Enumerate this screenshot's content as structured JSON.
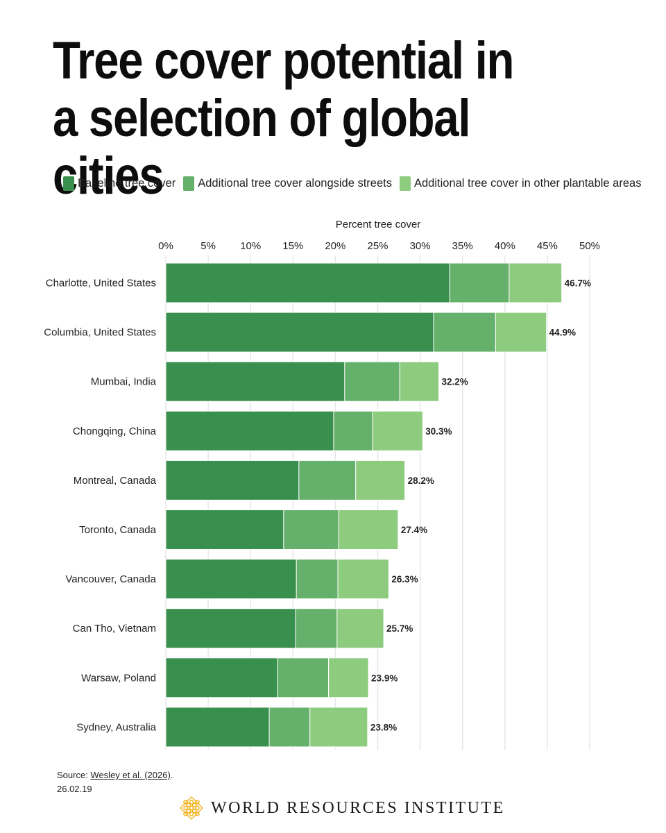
{
  "title": "Tree cover potential in a selection of global cities",
  "legend": [
    {
      "label": "Baseline tree cover",
      "color": "#398f4e"
    },
    {
      "label": "Additional tree cover alongside streets",
      "color": "#65b06b"
    },
    {
      "label": "Additional tree cover in other plantable areas",
      "color": "#8dcb7f"
    }
  ],
  "source": {
    "prefix": "Source: ",
    "link_text": "Wesley et al. (2026)",
    "suffix": ".",
    "date": "26.02.19"
  },
  "footer": {
    "org_name": "WORLD RESOURCES INSTITUTE",
    "logo_icon": "wri-logo-icon",
    "logo_color": "#f2b422"
  },
  "chart_data": {
    "type": "bar",
    "orientation": "horizontal",
    "stacked": true,
    "xlabel": "Percent tree cover",
    "xlim": [
      0,
      50
    ],
    "xticks": [
      "0%",
      "5%",
      "10%",
      "15%",
      "20%",
      "25%",
      "30%",
      "35%",
      "40%",
      "45%",
      "50%"
    ],
    "xtick_values": [
      0,
      5,
      10,
      15,
      20,
      25,
      30,
      35,
      40,
      45,
      50
    ],
    "grid": true,
    "legend_position": "top",
    "categories": [
      "Charlotte, United States",
      "Columbia, United States",
      "Mumbai, India",
      "Chongqing, China",
      "Montreal, Canada",
      "Toronto, Canada",
      "Vancouver, Canada",
      "Can Tho, Vietnam",
      "Warsaw, Poland",
      "Sydney, Australia"
    ],
    "series": [
      {
        "name": "Baseline tree cover",
        "values": [
          33.5,
          31.6,
          21.1,
          19.8,
          15.7,
          13.9,
          15.4,
          15.3,
          13.2,
          12.2
        ]
      },
      {
        "name": "Additional tree cover alongside streets",
        "values": [
          7.0,
          7.3,
          6.5,
          4.6,
          6.7,
          6.5,
          4.9,
          4.9,
          6.0,
          4.8
        ]
      },
      {
        "name": "Additional tree cover in other plantable areas",
        "values": [
          6.2,
          6.0,
          4.6,
          5.9,
          5.8,
          7.0,
          6.0,
          5.5,
          4.7,
          6.8
        ]
      }
    ],
    "totals": [
      46.7,
      44.9,
      32.2,
      30.3,
      28.2,
      27.4,
      26.3,
      25.7,
      23.9,
      23.8
    ],
    "total_labels": [
      "46.7%",
      "44.9%",
      "32.2%",
      "30.3%",
      "28.2%",
      "27.4%",
      "26.3%",
      "25.7%",
      "23.9%",
      "23.8%"
    ],
    "gridline_color": "#e6e6e6"
  }
}
